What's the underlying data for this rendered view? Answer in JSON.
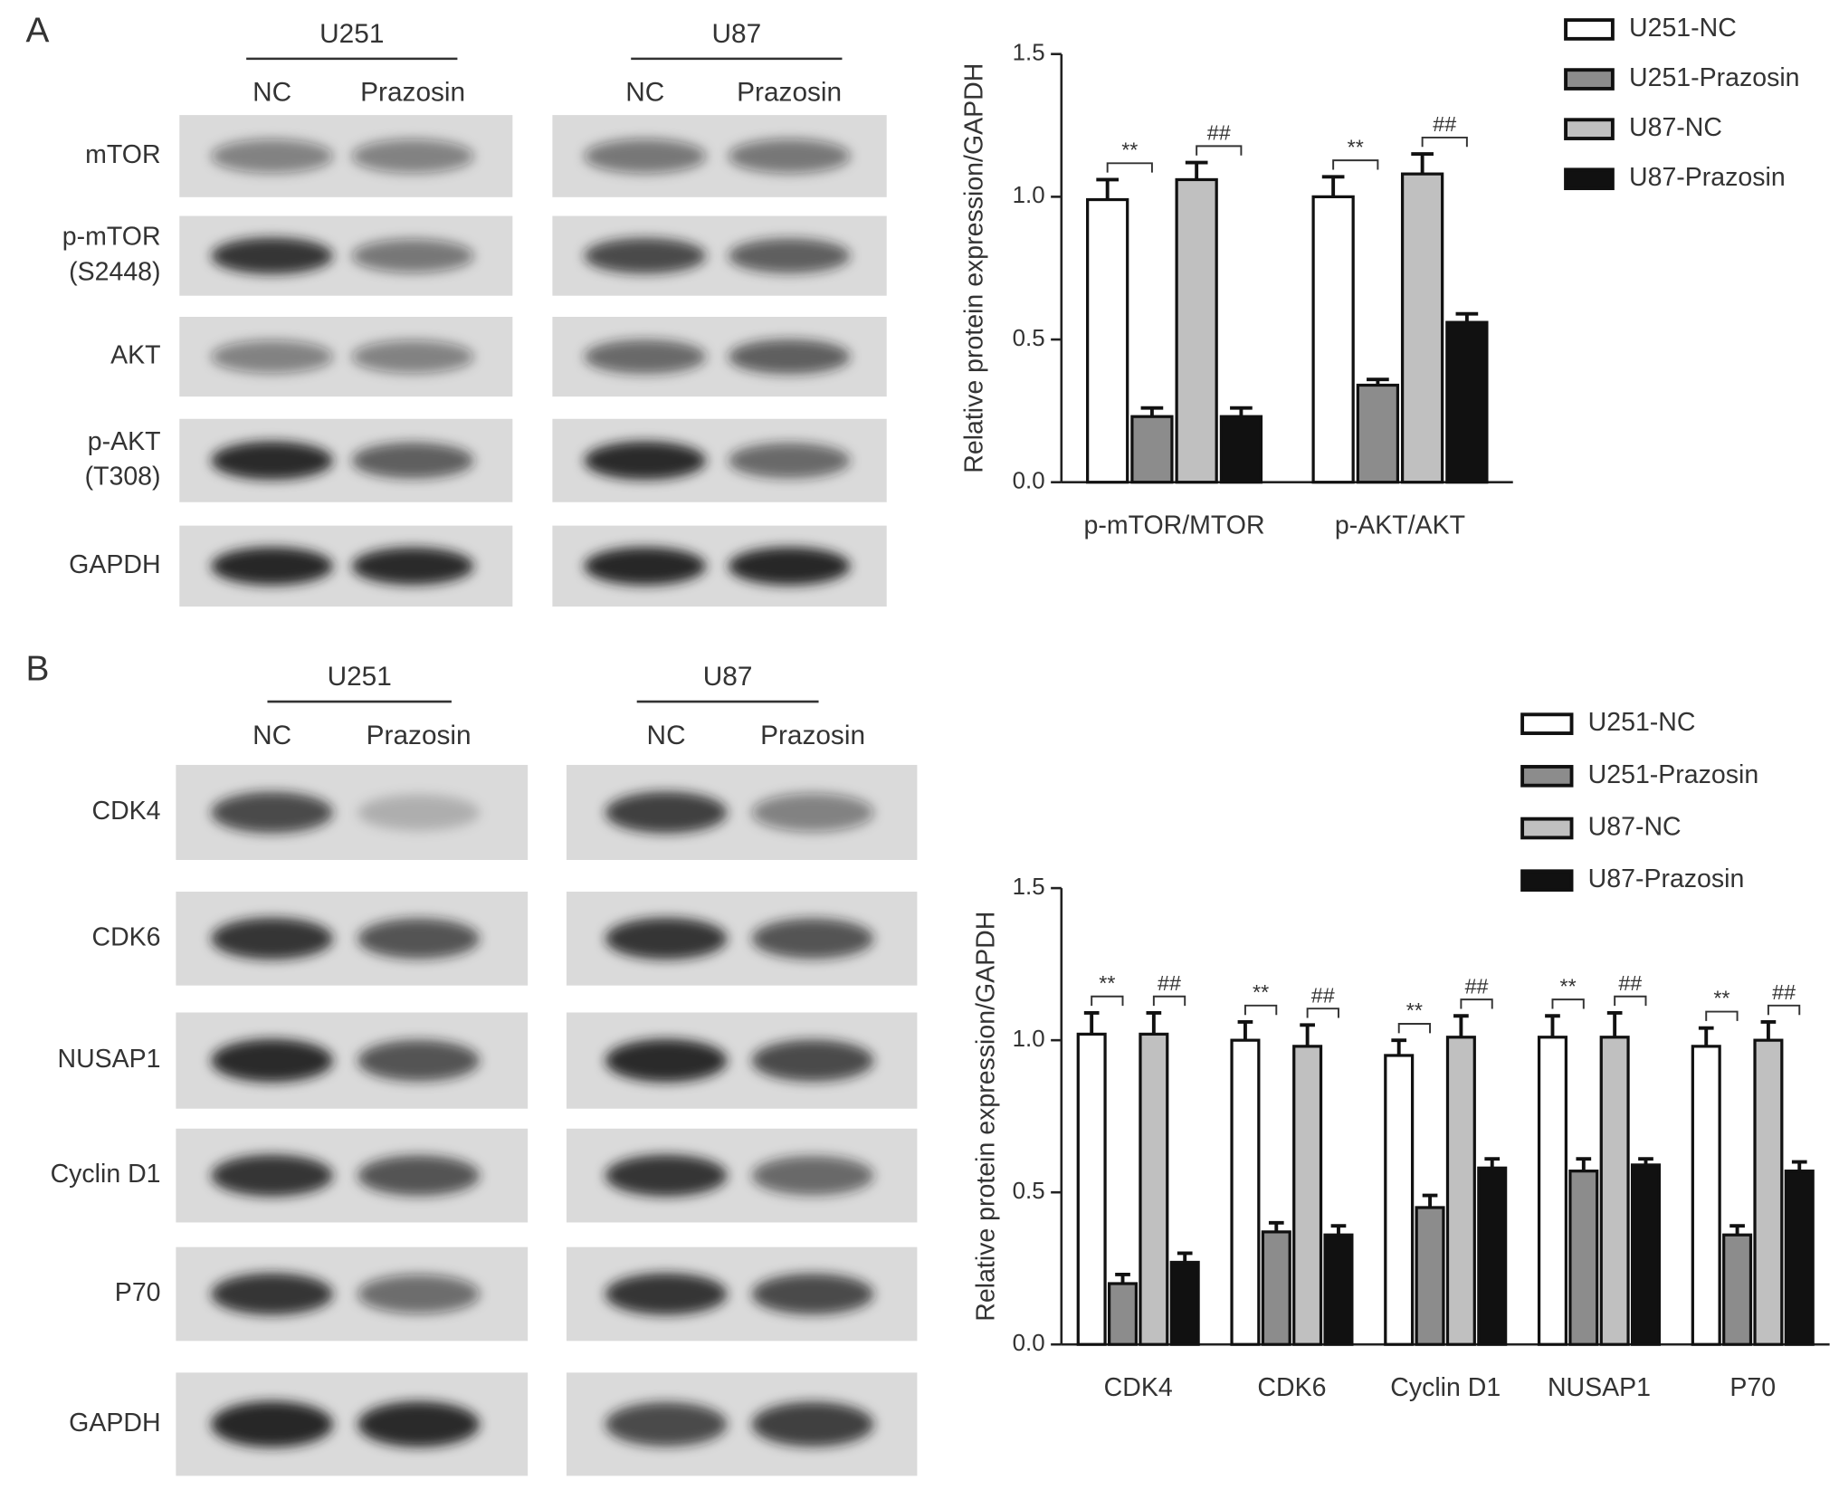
{
  "panels": [
    {
      "letter": "A",
      "cell_lines": [
        "U251",
        "U87"
      ],
      "conditions": [
        "NC",
        "Prazosin"
      ],
      "rows": [
        [
          "mTOR"
        ],
        [
          "p-mTOR",
          "(S2448)"
        ],
        [
          "AKT"
        ],
        [
          "p-AKT",
          "(T308)"
        ],
        [
          "GAPDH"
        ]
      ]
    },
    {
      "letter": "B",
      "cell_lines": [
        "U251",
        "U87"
      ],
      "conditions": [
        "NC",
        "Prazosin"
      ],
      "rows": [
        [
          "CDK4"
        ],
        [
          "CDK6"
        ],
        [
          "NUSAP1"
        ],
        [
          "Cyclin D1"
        ],
        [
          "P70"
        ],
        [
          "GAPDH"
        ]
      ]
    }
  ],
  "chart_data": [
    {
      "type": "bar",
      "ylabel": "Relative protein expression/GAPDH",
      "categories": [
        "p-mTOR/MTOR",
        "p-AKT/AKT"
      ],
      "series": [
        {
          "name": "U251-NC",
          "color": "#ffffff",
          "values": [
            0.99,
            1.0
          ],
          "errors": [
            0.07,
            0.07
          ]
        },
        {
          "name": "U251-Prazosin",
          "color": "#8c8c8c",
          "values": [
            0.23,
            0.34
          ],
          "errors": [
            0.03,
            0.02
          ]
        },
        {
          "name": "U87-NC",
          "color": "#c0c0c0",
          "values": [
            1.06,
            1.08
          ],
          "errors": [
            0.06,
            0.07
          ]
        },
        {
          "name": "U87-Prazosin",
          "color": "#111111",
          "values": [
            0.23,
            0.56
          ],
          "errors": [
            0.03,
            0.03
          ]
        }
      ],
      "annotations": [
        [
          "**",
          "##"
        ],
        [
          "**",
          "##"
        ]
      ],
      "ylim": [
        0,
        1.5
      ],
      "yticks": [
        {
          "value": 0,
          "label": "0.0"
        },
        0.5,
        {
          "value": 1,
          "label": "1.0"
        },
        1.5
      ]
    },
    {
      "type": "bar",
      "ylabel": "Relative protein expression/GAPDH",
      "categories": [
        "CDK4",
        "CDK6",
        "Cyclin D1",
        "NUSAP1",
        "P70"
      ],
      "series": [
        {
          "name": "U251-NC",
          "color": "#ffffff",
          "values": [
            1.02,
            1.0,
            0.95,
            1.01,
            0.98
          ],
          "errors": [
            0.07,
            0.06,
            0.05,
            0.07,
            0.06
          ]
        },
        {
          "name": "U251-Prazosin",
          "color": "#8c8c8c",
          "values": [
            0.2,
            0.37,
            0.45,
            0.57,
            0.36
          ],
          "errors": [
            0.03,
            0.03,
            0.04,
            0.04,
            0.03
          ]
        },
        {
          "name": "U87-NC",
          "color": "#c0c0c0",
          "values": [
            1.02,
            0.98,
            1.01,
            1.01,
            1.0
          ],
          "errors": [
            0.07,
            0.07,
            0.07,
            0.08,
            0.06
          ]
        },
        {
          "name": "U87-Prazosin",
          "color": "#111111",
          "values": [
            0.27,
            0.36,
            0.58,
            0.59,
            0.57
          ],
          "errors": [
            0.03,
            0.03,
            0.03,
            0.02,
            0.03
          ]
        }
      ],
      "annotations": [
        [
          "**",
          "##"
        ],
        [
          "**",
          "##"
        ],
        [
          "**",
          "##"
        ],
        [
          "**",
          "##"
        ],
        [
          "**",
          "##"
        ]
      ],
      "ylim": [
        0,
        1.5
      ],
      "yticks": [
        {
          "value": 0,
          "label": "0.0"
        },
        0.5,
        {
          "value": 1,
          "label": "1.0"
        },
        1.5
      ]
    }
  ]
}
